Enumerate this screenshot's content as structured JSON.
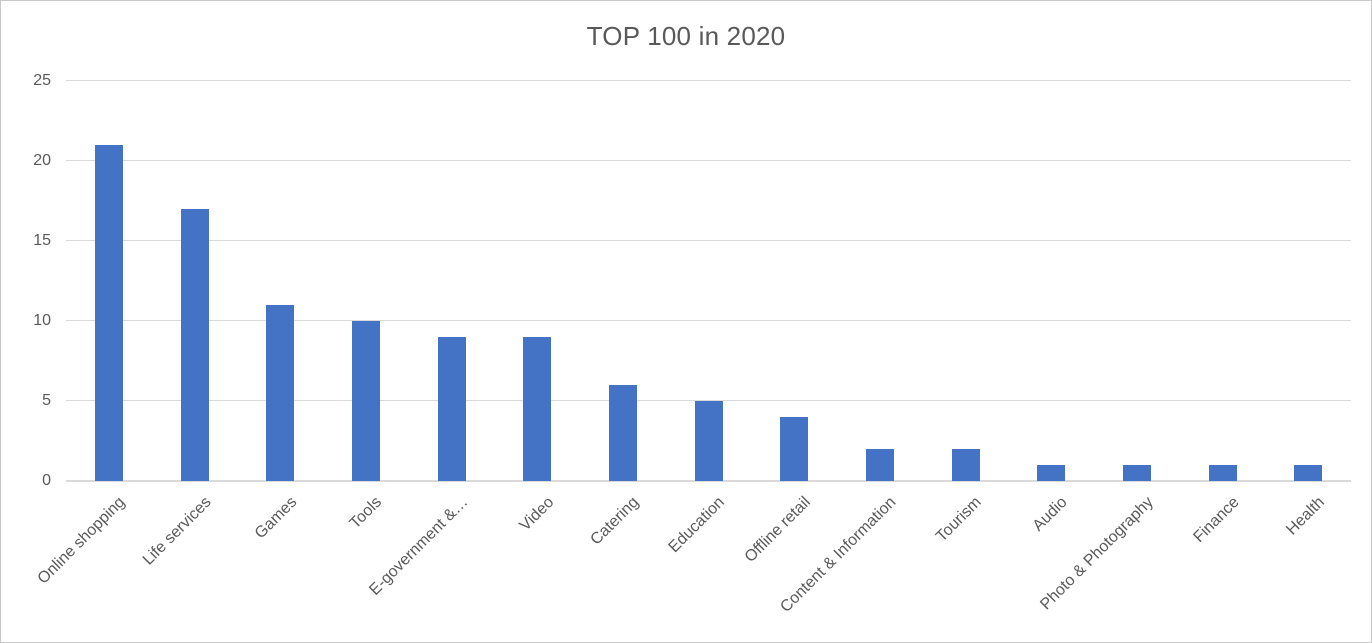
{
  "chart_data": {
    "type": "bar",
    "title": "TOP 100 in 2020",
    "categories": [
      "Online shopping",
      "Life services",
      "Games",
      "Tools",
      "E-government &…",
      "Video",
      "Catering",
      "Education",
      "Offline retail",
      "Content & Information",
      "Tourism",
      "Audio",
      "Photo & Photography",
      "Finance",
      "Health"
    ],
    "values": [
      21,
      17,
      11,
      10,
      9,
      9,
      6,
      5,
      4,
      2,
      2,
      1,
      1,
      1,
      1
    ],
    "xlabel": "",
    "ylabel": "",
    "ylim": [
      0,
      25
    ],
    "yticks": [
      0,
      5,
      10,
      15,
      20,
      25
    ],
    "grid": true,
    "legend": "none",
    "x_label_rotation_deg": 45,
    "colors": {
      "bar": "#4472C4",
      "title_text": "#595959",
      "axis_text": "#595959",
      "gridline": "#D9D9D9",
      "frame_border": "#C9C9C9",
      "background": "#FFFFFF"
    }
  }
}
